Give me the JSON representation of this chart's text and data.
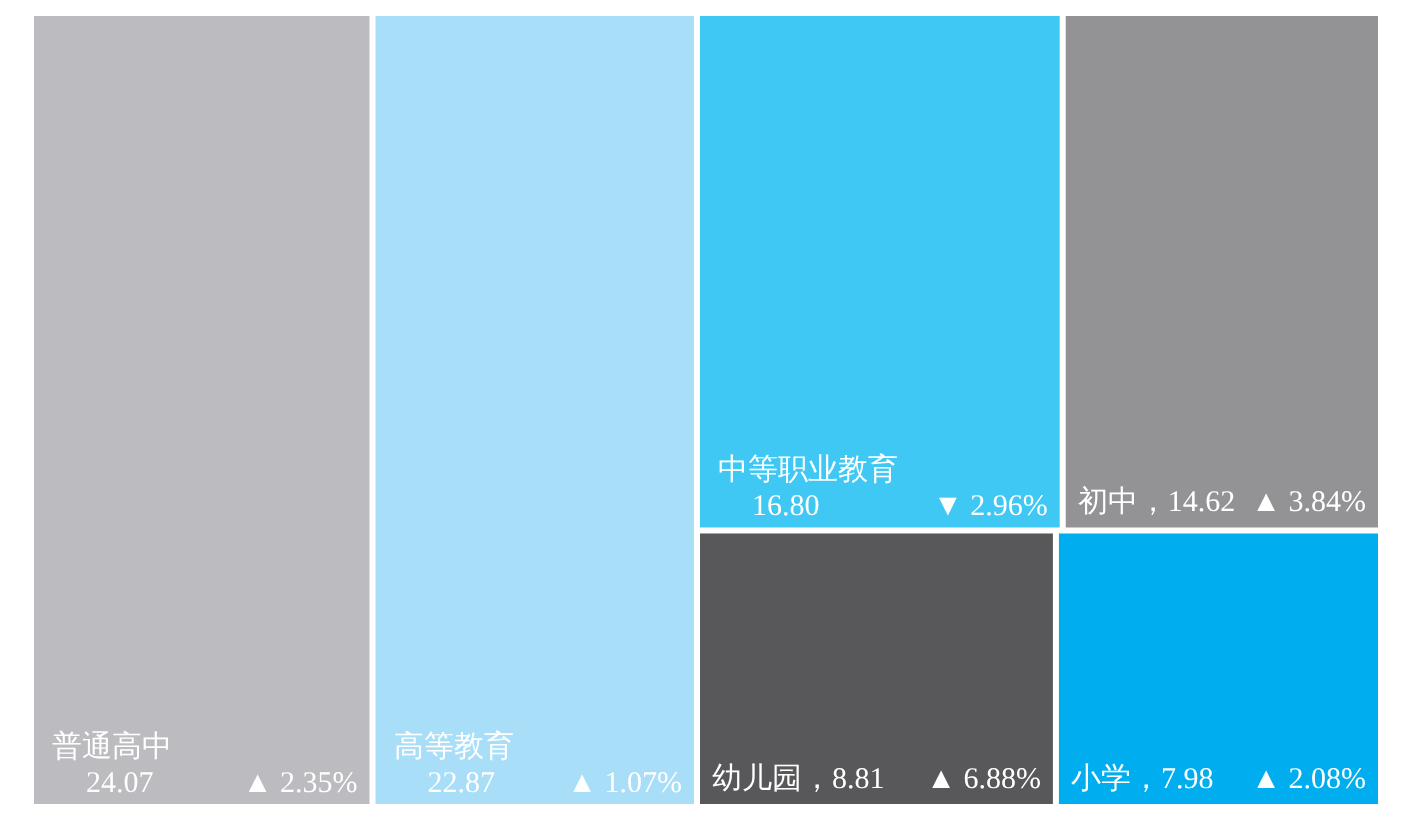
{
  "chart_data": {
    "type": "other",
    "categories": [
      "普通高中",
      "高等教育",
      "中等职业教育",
      "初中",
      "幼儿园",
      "小学"
    ],
    "values": [
      24.07,
      22.87,
      16.8,
      14.62,
      8.81,
      7.98
    ],
    "value_labels": [
      "24.07",
      "22.87",
      "16.80",
      "，14.62",
      "，8.81",
      "，7.98"
    ],
    "colors": [
      "#bcbcc0",
      "#a8def8",
      "#40c8f4",
      "#939396",
      "#58585a",
      "#00aeef"
    ],
    "annotations": [
      "▲ 2.35%",
      "▲ 1.07%",
      "▼ 2.96%",
      "▲ 3.84%",
      "▲ 6.88%",
      "▲ 2.08%"
    ]
  }
}
